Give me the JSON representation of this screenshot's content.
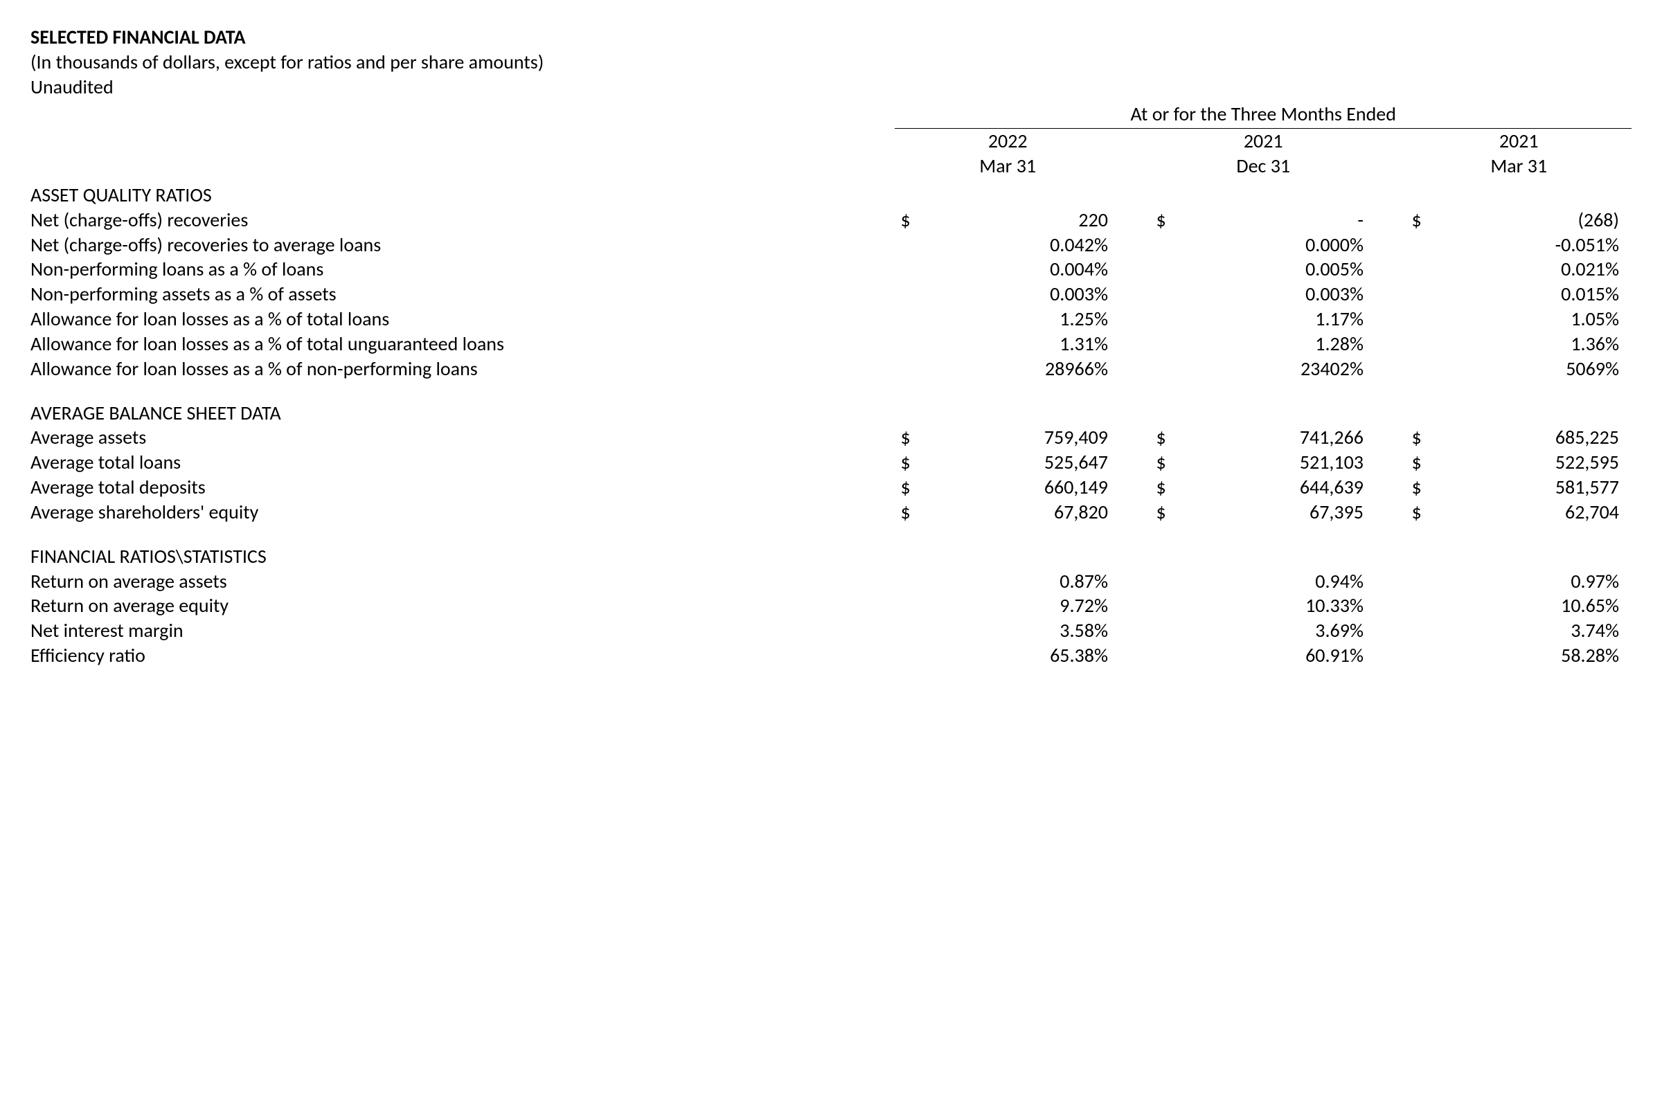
{
  "meta": {
    "title": "SELECTED FINANCIAL DATA",
    "subtitle": "(In thousands of dollars, except for ratios and per share amounts)",
    "audit": "Unaudited",
    "text_color": "#000000",
    "background_color": "#ffffff",
    "font_family": "Calibri"
  },
  "spanner": "At or for the Three Months Ended",
  "periods": [
    {
      "year": "2022",
      "date": "Mar 31"
    },
    {
      "year": "2021",
      "date": "Dec 31"
    },
    {
      "year": "2021",
      "date": "Mar 31"
    }
  ],
  "currency_symbol": "$",
  "sections": [
    {
      "title": "ASSET QUALITY RATIOS",
      "rows": [
        {
          "label": "Net (charge-offs) recoveries",
          "cells": [
            {
              "cur": "$",
              "val": "220"
            },
            {
              "cur": "$",
              "val": "-"
            },
            {
              "cur": "$",
              "val": "(268)"
            }
          ]
        },
        {
          "label": "Net (charge-offs) recoveries to average loans",
          "cells": [
            {
              "cur": "",
              "val": "0.042%"
            },
            {
              "cur": "",
              "val": "0.000%"
            },
            {
              "cur": "",
              "val": "-0.051%"
            }
          ]
        },
        {
          "label": "Non-performing loans as a % of loans",
          "cells": [
            {
              "cur": "",
              "val": "0.004%"
            },
            {
              "cur": "",
              "val": "0.005%"
            },
            {
              "cur": "",
              "val": "0.021%"
            }
          ]
        },
        {
          "label": "Non-performing assets as a % of assets",
          "cells": [
            {
              "cur": "",
              "val": "0.003%"
            },
            {
              "cur": "",
              "val": "0.003%"
            },
            {
              "cur": "",
              "val": "0.015%"
            }
          ]
        },
        {
          "label": "Allowance for loan losses as a % of total loans",
          "cells": [
            {
              "cur": "",
              "val": "1.25%"
            },
            {
              "cur": "",
              "val": "1.17%"
            },
            {
              "cur": "",
              "val": "1.05%"
            }
          ]
        },
        {
          "label": "Allowance for loan losses as a % of total unguaranteed loans",
          "cells": [
            {
              "cur": "",
              "val": "1.31%"
            },
            {
              "cur": "",
              "val": "1.28%"
            },
            {
              "cur": "",
              "val": "1.36%"
            }
          ]
        },
        {
          "label": "Allowance for loan losses as a % of non-performing loans",
          "cells": [
            {
              "cur": "",
              "val": "28966%"
            },
            {
              "cur": "",
              "val": "23402%"
            },
            {
              "cur": "",
              "val": "5069%"
            }
          ]
        }
      ]
    },
    {
      "title": "AVERAGE BALANCE SHEET DATA",
      "rows": [
        {
          "label": "Average assets",
          "cells": [
            {
              "cur": "$",
              "val": "759,409"
            },
            {
              "cur": "$",
              "val": "741,266"
            },
            {
              "cur": "$",
              "val": "685,225"
            }
          ]
        },
        {
          "label": "Average total loans",
          "cells": [
            {
              "cur": "$",
              "val": "525,647"
            },
            {
              "cur": "$",
              "val": "521,103"
            },
            {
              "cur": "$",
              "val": "522,595"
            }
          ]
        },
        {
          "label": "Average total deposits",
          "cells": [
            {
              "cur": "$",
              "val": "660,149"
            },
            {
              "cur": "$",
              "val": "644,639"
            },
            {
              "cur": "$",
              "val": "581,577"
            }
          ]
        },
        {
          "label": "Average shareholders' equity",
          "cells": [
            {
              "cur": "$",
              "val": "67,820"
            },
            {
              "cur": "$",
              "val": "67,395"
            },
            {
              "cur": "$",
              "val": "62,704"
            }
          ]
        }
      ]
    },
    {
      "title": "FINANCIAL RATIOS\\STATISTICS",
      "rows": [
        {
          "label": "Return on average assets",
          "cells": [
            {
              "cur": "",
              "val": "0.87%"
            },
            {
              "cur": "",
              "val": "0.94%"
            },
            {
              "cur": "",
              "val": "0.97%"
            }
          ]
        },
        {
          "label": "Return on average equity",
          "cells": [
            {
              "cur": "",
              "val": "9.72%"
            },
            {
              "cur": "",
              "val": "10.33%"
            },
            {
              "cur": "",
              "val": "10.65%"
            }
          ]
        },
        {
          "label": "Net interest margin",
          "cells": [
            {
              "cur": "",
              "val": "3.58%"
            },
            {
              "cur": "",
              "val": "3.69%"
            },
            {
              "cur": "",
              "val": "3.74%"
            }
          ]
        },
        {
          "label": "Efficiency ratio",
          "cells": [
            {
              "cur": "",
              "val": "65.38%"
            },
            {
              "cur": "",
              "val": "60.91%"
            },
            {
              "cur": "",
              "val": "58.28%"
            }
          ]
        }
      ]
    }
  ]
}
